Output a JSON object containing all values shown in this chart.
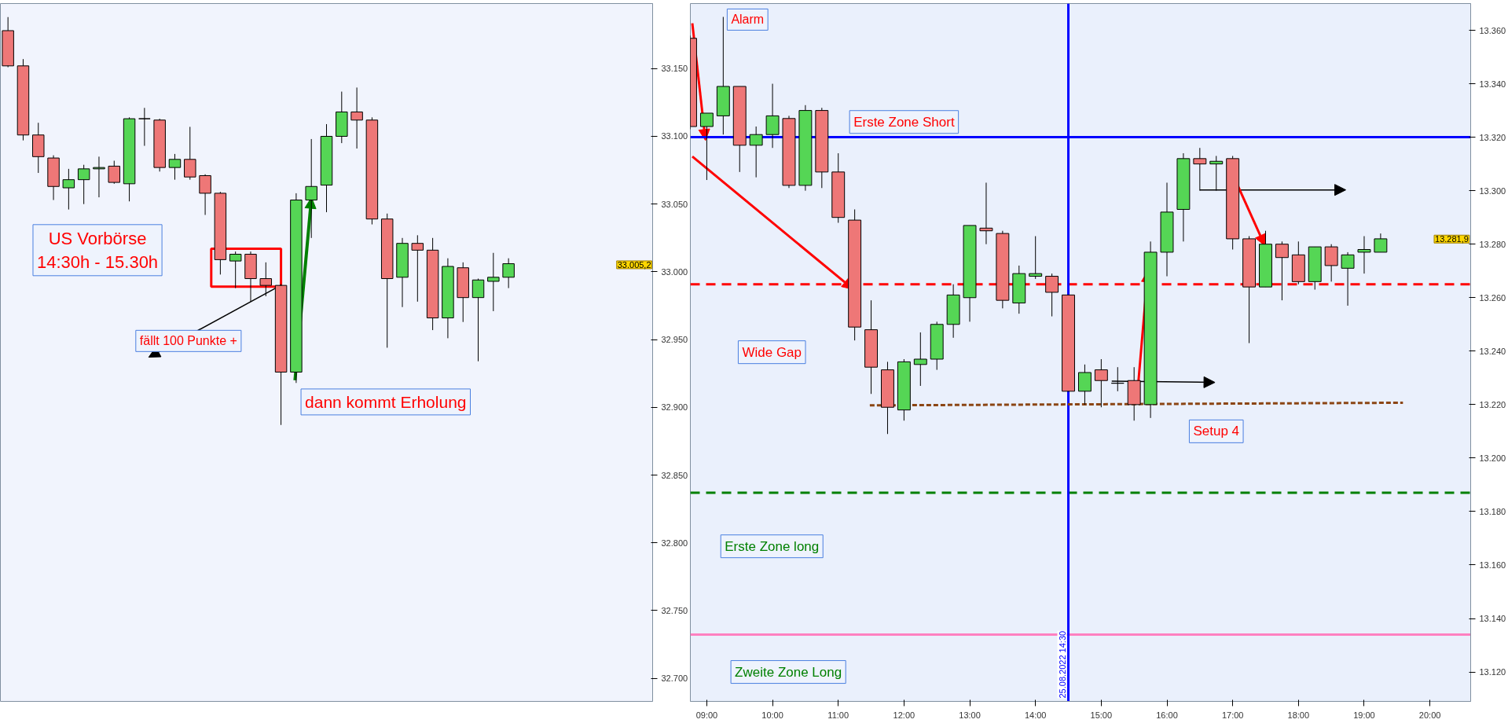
{
  "chart_data": [
    {
      "type": "candlestick",
      "categories": [
        null,
        null,
        null,
        null,
        null,
        null,
        null,
        null,
        null,
        null,
        null,
        null,
        null,
        null,
        null,
        null,
        null,
        null,
        null,
        null,
        null,
        null,
        null,
        null,
        null,
        null,
        null,
        null,
        null,
        null,
        null,
        null,
        null,
        null,
        null,
        null,
        null,
        null,
        null,
        null,
        null,
        null,
        null
      ],
      "ohlc": [
        [
          33178,
          33188,
          33151,
          33152
        ],
        [
          33152,
          33157,
          33097,
          33101
        ],
        [
          33101,
          33110,
          33073,
          33085
        ],
        [
          33084,
          33086,
          33053,
          33063
        ],
        [
          33062,
          33076,
          33046,
          33068
        ],
        [
          33068,
          33079,
          33050,
          33076
        ],
        [
          33076,
          33085,
          33055,
          33077
        ],
        [
          33078,
          33082,
          33065,
          33066
        ],
        [
          33065,
          33114,
          33052,
          33113
        ],
        [
          33113,
          33121,
          33093,
          33113
        ],
        [
          33112,
          33113,
          33074,
          33077
        ],
        [
          33077,
          33087,
          33068,
          33083
        ],
        [
          33083,
          33107,
          33068,
          33070
        ],
        [
          33071,
          33072,
          33042,
          33058
        ],
        [
          33058,
          33059,
          32998,
          33009
        ],
        [
          33008,
          33015,
          32988,
          33013
        ],
        [
          33013,
          33015,
          32978,
          32995
        ],
        [
          32995,
          33007,
          32982,
          32990
        ],
        [
          32990,
          32991,
          32887,
          32926
        ],
        [
          32926,
          33058,
          32918,
          33053
        ],
        [
          33053,
          33098,
          33025,
          33063
        ],
        [
          33064,
          33109,
          33044,
          33100
        ],
        [
          33100,
          33133,
          33095,
          33118
        ],
        [
          33118,
          33136,
          33091,
          33112
        ],
        [
          33112,
          33114,
          33035,
          33039
        ],
        [
          33039,
          33043,
          32944,
          32995
        ],
        [
          32996,
          33025,
          32974,
          33021
        ],
        [
          33021,
          33027,
          32978,
          33016
        ],
        [
          33016,
          33025,
          32957,
          32966
        ],
        [
          32966,
          33010,
          32951,
          33004
        ],
        [
          33003,
          33007,
          32963,
          32981
        ],
        [
          32981,
          32995,
          32934,
          32994
        ],
        [
          32993,
          33014,
          32971,
          32996
        ],
        [
          32996,
          33010,
          32988,
          33006
        ],
        null,
        null,
        null,
        null,
        null,
        null,
        null,
        null,
        null
      ],
      "ylim": [
        32683,
        33198
      ],
      "yticks": [
        {
          "value": 32700,
          "label": "32.700"
        },
        {
          "value": 32750,
          "label": "32.750"
        },
        {
          "value": 32800,
          "label": "32.800"
        },
        {
          "value": 32850,
          "label": "32.850"
        },
        {
          "value": 32900,
          "label": "32.900"
        },
        {
          "value": 32950,
          "label": "32.950"
        },
        {
          "value": 33000,
          "label": "33.000"
        },
        {
          "value": 33050,
          "label": "33.050"
        },
        {
          "value": 33100,
          "label": "33.100"
        },
        {
          "value": 33150,
          "label": "33.150"
        }
      ],
      "tick_labels": "y",
      "annotations": [
        "US Vorbörse\n14:30h - 15.30h",
        "fällt 100 Punkte +",
        "dann kommt Erholung",
        "33.005,2"
      ]
    },
    {
      "type": "candlestick",
      "x": [
        8.75,
        9,
        9.25,
        9.5,
        9.75,
        10,
        10.25,
        10.5,
        10.75,
        11,
        11.25,
        11.5,
        11.75,
        12,
        12.25,
        12.5,
        12.75,
        13,
        13.25,
        13.5,
        13.75,
        14,
        14.25,
        14.5,
        14.75,
        15,
        15.25,
        15.5,
        15.75,
        16,
        16.25,
        16.5,
        16.75,
        17,
        17.25,
        17.5,
        17.75,
        18,
        18.25,
        18.5,
        18.75,
        19,
        19.25
      ],
      "ohlc": [
        [
          13357,
          13358,
          13323,
          13324
        ],
        [
          13324,
          13329,
          13304,
          13329
        ],
        [
          13328,
          13365,
          13321,
          13339
        ],
        [
          13339,
          13339,
          13307,
          13317
        ],
        [
          13317,
          13324,
          13305,
          13321
        ],
        [
          13321,
          13340,
          13316,
          13328
        ],
        [
          13327,
          13328,
          13301,
          13302
        ],
        [
          13302,
          13332,
          13300,
          13330
        ],
        [
          13330,
          13331,
          13301,
          13307
        ],
        [
          13307,
          13314,
          13288,
          13290
        ],
        [
          13289,
          13293,
          13244,
          13249
        ],
        [
          13248,
          13259,
          13224,
          13234
        ],
        [
          13233,
          13236,
          13209,
          13219
        ],
        [
          13218,
          13237,
          13214,
          13236
        ],
        [
          13235,
          13247,
          13227,
          13237
        ],
        [
          13237,
          13251,
          13233,
          13250
        ],
        [
          13250,
          13265,
          13245,
          13261
        ],
        [
          13260,
          13287,
          13251,
          13287
        ],
        [
          13286,
          13303,
          13280,
          13285
        ],
        [
          13284,
          13285,
          13256,
          13259
        ],
        [
          13258,
          13272,
          13254,
          13269
        ],
        [
          13268,
          13283,
          13267,
          13269
        ],
        [
          13268,
          13269,
          13253,
          13262
        ],
        [
          13261,
          13261,
          13225,
          13225
        ],
        [
          13225,
          13235,
          13220,
          13232
        ],
        [
          13233,
          13237,
          13219,
          13229
        ],
        [
          13228,
          13234,
          13225,
          13228
        ],
        [
          13229,
          13234,
          13214,
          13220
        ],
        [
          13220,
          13281,
          13215,
          13277
        ],
        [
          13277,
          13303,
          13268,
          13292
        ],
        [
          13293,
          13314,
          13281,
          13312
        ],
        [
          13312,
          13316,
          13300,
          13310
        ],
        [
          13310,
          13313,
          13300,
          13311
        ],
        [
          13312,
          13313,
          13278,
          13282
        ],
        [
          13282,
          13283,
          13243,
          13264
        ],
        [
          13264,
          13285,
          13264,
          13280
        ],
        [
          13280,
          13281,
          13259,
          13275
        ],
        [
          13276,
          13281,
          13265,
          13266
        ],
        [
          13266,
          13279,
          13263,
          13279
        ],
        [
          13279,
          13280,
          13266,
          13272
        ],
        [
          13271,
          13277,
          13257,
          13276
        ],
        [
          13277,
          13283,
          13269,
          13278
        ],
        [
          13277,
          13284,
          13277,
          13282
        ]
      ],
      "xlim": [
        8.75,
        20.62
      ],
      "xticks": [
        {
          "value": 9,
          "label": "09:00"
        },
        {
          "value": 10,
          "label": "10:00"
        },
        {
          "value": 11,
          "label": "11:00"
        },
        {
          "value": 12,
          "label": "12:00"
        },
        {
          "value": 13,
          "label": "13:00"
        },
        {
          "value": 14,
          "label": "14:00"
        },
        {
          "value": 15,
          "label": "15:00"
        },
        {
          "value": 16,
          "label": "16:00"
        },
        {
          "value": 17,
          "label": "17:00"
        },
        {
          "value": 18,
          "label": "18:00"
        },
        {
          "value": 19,
          "label": "19:00"
        },
        {
          "value": 20,
          "label": "20:00"
        }
      ],
      "ylim": [
        13109,
        13370
      ],
      "yticks": [
        {
          "value": 13120,
          "label": "13.120"
        },
        {
          "value": 13140,
          "label": "13.140"
        },
        {
          "value": 13160,
          "label": "13.160"
        },
        {
          "value": 13180,
          "label": "13.180"
        },
        {
          "value": 13200,
          "label": "13.200"
        },
        {
          "value": 13220,
          "label": "13.220"
        },
        {
          "value": 13240,
          "label": "13.240"
        },
        {
          "value": 13260,
          "label": "13.260"
        },
        {
          "value": 13280,
          "label": "13.280"
        },
        {
          "value": 13300,
          "label": "13.300"
        },
        {
          "value": 13320,
          "label": "13.320"
        },
        {
          "value": 13340,
          "label": "13.340"
        },
        {
          "value": 13360,
          "label": "13.360"
        }
      ],
      "series": [
        {
          "type": "line",
          "x": [
            11.48,
            19.59
          ],
          "values": [
            13219.7,
            13220.7
          ],
          "color": "#8b4513",
          "line_style": "dashed"
        }
      ],
      "ref_lines": [
        {
          "axis": "y",
          "value": 13320,
          "color": "#0000ff",
          "line_style": "solid"
        },
        {
          "axis": "y",
          "value": 13265,
          "color": "#ff0000",
          "line_style": "dashed"
        },
        {
          "axis": "y",
          "value": 13187,
          "color": "#008000",
          "line_style": "dashed"
        },
        {
          "axis": "y",
          "value": 13134,
          "color": "#ff80c0",
          "line_style": "solid"
        },
        {
          "axis": "x",
          "value": 14.5,
          "label": "25.08.2022 14:30",
          "color": "#0000ff",
          "line_style": "solid"
        }
      ],
      "annotations": [
        "Alarm",
        "Erste Zone Short",
        "Wide Gap",
        "Erste Zone long",
        "Zweite Zone Long",
        "Setup 4",
        "13.281,9"
      ]
    }
  ]
}
